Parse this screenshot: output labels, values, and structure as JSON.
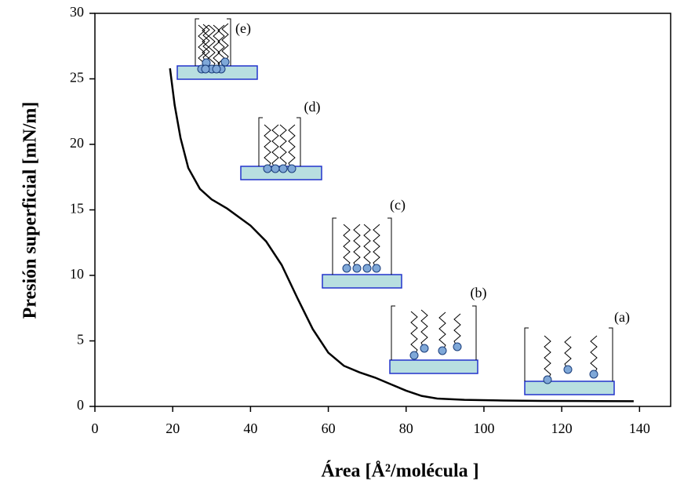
{
  "chart_data": {
    "type": "line",
    "xlabel": "Área  [Å²/molécula   ]",
    "ylabel": "Presión superficial [mN/m]",
    "x": [
      19.3,
      20.5,
      22,
      24,
      27,
      30,
      34,
      40,
      44,
      48,
      52,
      56,
      60,
      64,
      68,
      72,
      76,
      80,
      84,
      88,
      95,
      105,
      115,
      125,
      138.5
    ],
    "values": [
      25.8,
      23,
      20.5,
      18.2,
      16.6,
      15.8,
      15.1,
      13.8,
      12.6,
      10.8,
      8.3,
      5.9,
      4.1,
      3.1,
      2.6,
      2.2,
      1.7,
      1.2,
      0.8,
      0.6,
      0.5,
      0.45,
      0.42,
      0.41,
      0.4
    ],
    "color": "#000000",
    "xlim": [
      0,
      148
    ],
    "xticks": [
      0,
      20,
      40,
      60,
      80,
      100,
      120,
      140
    ],
    "ylim": [
      0,
      30
    ],
    "yticks": [
      0,
      5,
      10,
      15,
      20,
      25,
      30
    ],
    "annotations": [
      "(a)",
      "(b)",
      "(c)",
      "(d)",
      "(e)"
    ]
  }
}
